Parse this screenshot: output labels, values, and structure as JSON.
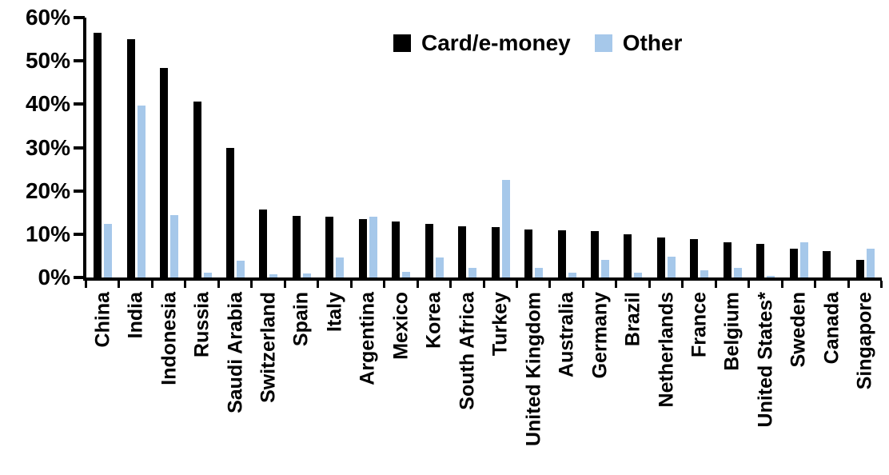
{
  "chart_data": {
    "type": "bar",
    "title": "",
    "xlabel": "",
    "ylabel": "",
    "ylim": [
      0,
      60
    ],
    "ytick_labels": [
      "0%",
      "10%",
      "20%",
      "30%",
      "40%",
      "50%",
      "60%"
    ],
    "grid": false,
    "legend_position": "top-center",
    "categories": [
      "China",
      "India",
      "Indonesia",
      "Russia",
      "Saudi Arabia",
      "Switzerland",
      "Spain",
      "Italy",
      "Argentina",
      "Mexico",
      "Korea",
      "South Africa",
      "Turkey",
      "United Kingdom",
      "Australia",
      "Germany",
      "Brazil",
      "Netherlands",
      "France",
      "Belgium",
      "United States*",
      "Sweden",
      "Canada",
      "Singapore"
    ],
    "series": [
      {
        "name": "Card/e-money",
        "color": "#000000",
        "values": [
          56.4,
          55.1,
          48.3,
          40.6,
          29.9,
          15.6,
          14.2,
          14.0,
          13.5,
          13.0,
          12.4,
          11.8,
          11.6,
          11.0,
          10.9,
          10.7,
          9.9,
          9.3,
          8.8,
          8.2,
          7.8,
          6.6,
          6.0,
          4.0
        ]
      },
      {
        "name": "Other",
        "color": "#A6C8EA",
        "values": [
          12.3,
          39.7,
          14.4,
          1.1,
          3.8,
          0.8,
          0.9,
          4.6,
          14.0,
          1.3,
          4.6,
          2.3,
          22.5,
          2.3,
          1.1,
          4.0,
          1.1,
          4.8,
          1.6,
          2.2,
          0.3,
          8.1,
          0.0,
          6.7
        ]
      }
    ],
    "axis_color": "#000000"
  }
}
